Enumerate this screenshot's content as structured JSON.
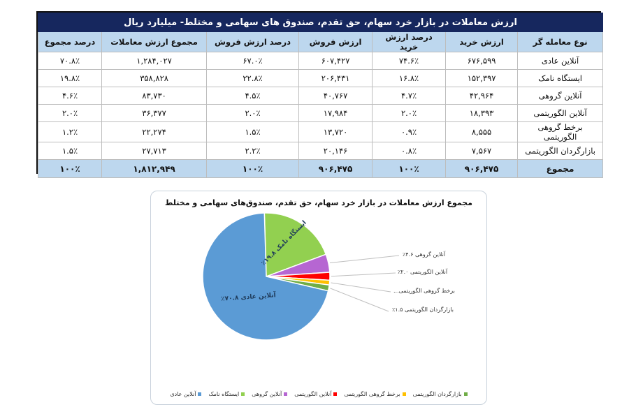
{
  "table": {
    "title": "ارزش معاملات در بازار خرد سهام، حق تقدم، صندوق های سهامی و مختلط- میلیارد ریال",
    "headers": [
      "نوع معامله گر",
      "ارزش خرید",
      "درصد ارزش خرید",
      "ارزش فروش",
      "درصد ارزش فروش",
      "مجموع ارزش معاملات",
      "درصد مجموع"
    ],
    "rows": [
      [
        "آنلاین عادی",
        "۶۷۶,۵۹۹",
        "۷۴.۶٪",
        "۶۰۷,۴۲۷",
        "۶۷.۰٪",
        "۱,۲۸۴,۰۲۷",
        "۷۰.۸٪"
      ],
      [
        "ایستگاه نامک",
        "۱۵۲,۳۹۷",
        "۱۶.۸٪",
        "۲۰۶,۴۳۱",
        "۲۲.۸٪",
        "۳۵۸,۸۲۸",
        "۱۹.۸٪"
      ],
      [
        "آنلاین گروهی",
        "۴۲,۹۶۴",
        "۴.۷٪",
        "۴۰,۷۶۷",
        "۴.۵٪",
        "۸۳,۷۳۰",
        "۴.۶٪"
      ],
      [
        "آنلاین الگوریتمی",
        "۱۸,۳۹۳",
        "۲.۰٪",
        "۱۷,۹۸۴",
        "۲.۰٪",
        "۳۶,۳۷۷",
        "۲.۰٪"
      ],
      [
        "برخط گروهی الگوریتمی",
        "۸,۵۵۵",
        "۰.۹٪",
        "۱۳,۷۲۰",
        "۱.۵٪",
        "۲۲,۲۷۴",
        "۱.۲٪"
      ],
      [
        "بازارگردان الگوریتمی",
        "۷,۵۶۷",
        "۰.۸٪",
        "۲۰,۱۴۶",
        "۲.۲٪",
        "۲۷,۷۱۳",
        "۱.۵٪"
      ]
    ],
    "total": [
      "مجموع",
      "۹۰۶,۴۷۵",
      "۱۰۰٪",
      "۹۰۶,۴۷۵",
      "۱۰۰٪",
      "۱,۸۱۲,۹۴۹",
      "۱۰۰٪"
    ],
    "colors": {
      "title_bg": "#16275e",
      "header_bg": "#bdd7ee",
      "total_bg": "#bdd7ee"
    }
  },
  "chart": {
    "title": "مجموع ارزش معاملات در بازار خرد سهام، حق تقدم، صندوق‌های سهامی و مختلط",
    "inner_labels": {
      "online_regular": "آنلاین عادی ۷۰.۸٪",
      "namak": "ایستگاه نامک ۱۹.۸٪"
    },
    "callouts": [
      "آنلاین گروهی ۴.۶٪",
      "آنلاین الگوریتمی ۲.۰٪",
      "برخط گروهی الگوریتمی...",
      "بازارگردان الگوریتمی ۱.۵٪"
    ],
    "legend": [
      {
        "label": "بازارگردان الگوریتمی",
        "color": "#70ad47"
      },
      {
        "label": "برخط گروهی الگوریتمی",
        "color": "#ffc000"
      },
      {
        "label": "آنلاین الگوریتمی",
        "color": "#ff0000"
      },
      {
        "label": "آنلاین گروهی",
        "color": "#b666d2"
      },
      {
        "label": "ایستگاه نامک",
        "color": "#92d050"
      },
      {
        "label": "آنلاین عادی",
        "color": "#5b9bd5"
      }
    ]
  },
  "chart_data": {
    "type": "pie",
    "title": "مجموع ارزش معاملات در بازار خرد سهام، حق تقدم، صندوق‌های سهامی و مختلط",
    "categories": [
      "آنلاین عادی",
      "ایستگاه نامک",
      "آنلاین گروهی",
      "آنلاین الگوریتمی",
      "برخط گروهی الگوریتمی",
      "بازارگردان الگوریتمی"
    ],
    "values": [
      70.8,
      19.8,
      4.6,
      2.0,
      1.2,
      1.5
    ],
    "absolute_values": [
      1284027,
      358828,
      83730,
      36377,
      22274,
      27713
    ],
    "colors": [
      "#5b9bd5",
      "#92d050",
      "#b666d2",
      "#ff0000",
      "#ffc000",
      "#70ad47"
    ],
    "unit": "%",
    "legend_position": "bottom"
  }
}
